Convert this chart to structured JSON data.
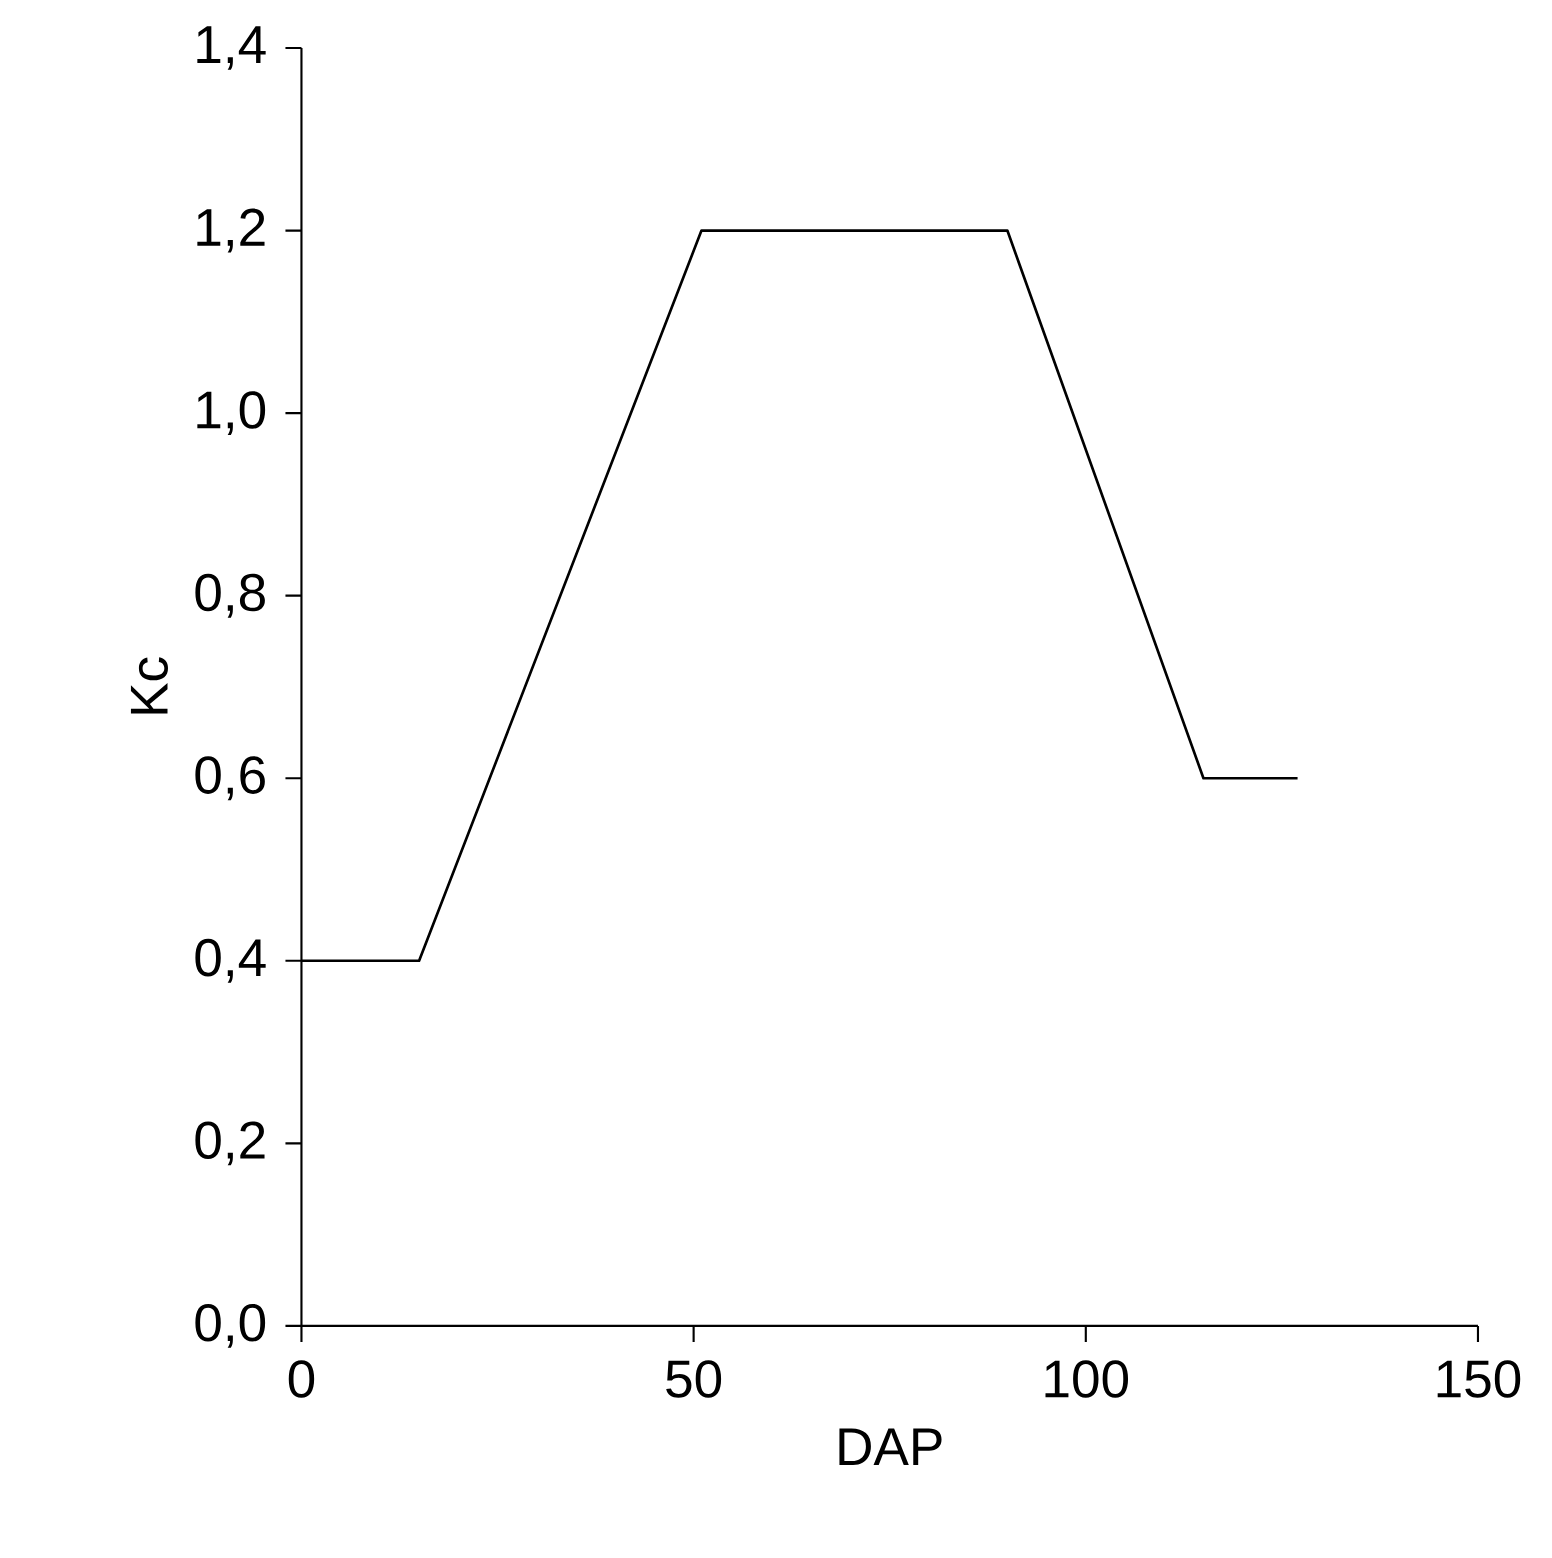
{
  "chart_data": {
    "type": "line",
    "xlabel": "DAP",
    "ylabel": "Kc",
    "x": [
      0,
      15,
      51,
      90,
      115,
      127
    ],
    "series": [
      {
        "color": "#000000",
        "values": [
          0.4,
          0.4,
          1.2,
          1.2,
          0.6,
          0.6
        ]
      }
    ],
    "xlim": [
      0,
      150
    ],
    "xticks": [
      0,
      50,
      100,
      150
    ],
    "ylim": [
      0,
      1.4
    ],
    "yticks": [
      {
        "value": 0,
        "label": "0,0"
      },
      {
        "value": 0.2,
        "label": "0,2"
      },
      {
        "value": 0.4,
        "label": "0,4"
      },
      {
        "value": 0.6,
        "label": "0,6"
      },
      {
        "value": 0.8,
        "label": "0,8"
      },
      {
        "value": 1.0,
        "label": "1,0"
      },
      {
        "value": 1.2,
        "label": "1,2"
      },
      {
        "value": 1.4,
        "label": "1,4"
      }
    ],
    "grid": false,
    "marker": "none",
    "line_style": "solid"
  }
}
